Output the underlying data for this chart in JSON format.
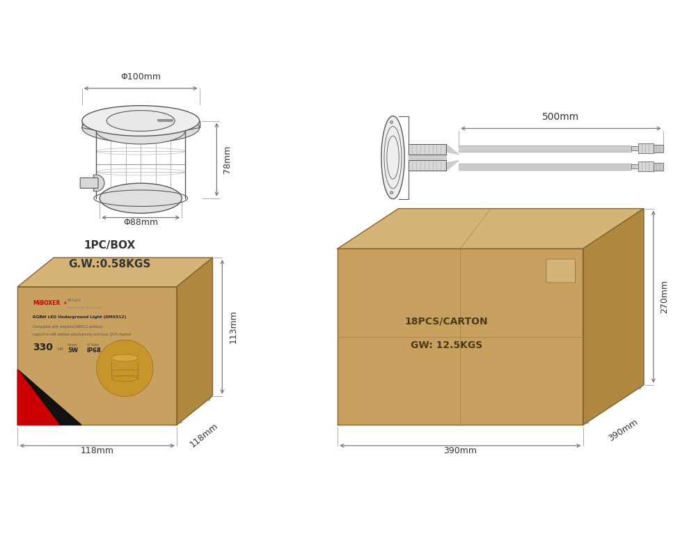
{
  "bg_color": "#ffffff",
  "line_color": "#555555",
  "dim_color": "#888888",
  "text_color": "#333333",
  "dim_arrow_color": "#777777",
  "title_line1": "1PC/BOX",
  "title_line2": "G.W.:0.58KGS",
  "dim_phi100": "Φ100mm",
  "dim_phi88": "Φ88mm",
  "dim_78": "78mm",
  "dim_500": "500mm",
  "dim_113": "113mm",
  "dim_118w": "118mm",
  "dim_118d": "118mm",
  "dim_270": "270mm",
  "dim_390w": "390mm",
  "dim_390d": "390mm",
  "carton_text1": "18PCS/CARTON",
  "carton_text2": "GW: 12.5KGS",
  "box_front": "#c8a060",
  "box_top": "#d4b478",
  "box_right": "#b08840",
  "box_edge": "#8a6830"
}
